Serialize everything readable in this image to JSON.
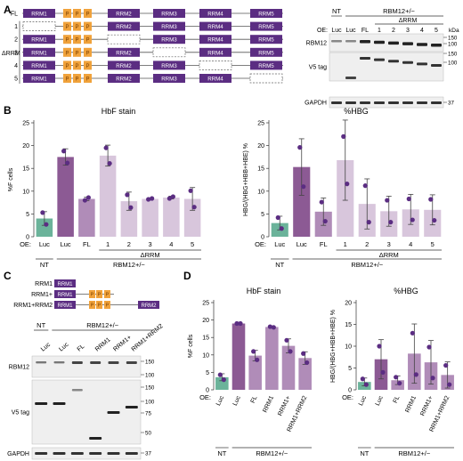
{
  "panels": {
    "A": "A",
    "B": "B",
    "C": "C",
    "D": "D"
  },
  "colors": {
    "teal": "#6bb39a",
    "dark_purple": "#8c5a94",
    "mid_purple": "#b08cb8",
    "light_purple": "#d8c6dc",
    "rrm": "#5b2d82",
    "ptb": "#f0a23b",
    "dot": "#5b2d82"
  },
  "panelA": {
    "fl_label": "FL",
    "drrm_label": "ΔRRM",
    "construct_rows": [
      {
        "label": "FL",
        "missing": null
      },
      {
        "label": "1",
        "missing": 1
      },
      {
        "label": "2",
        "missing": 2
      },
      {
        "label": "3",
        "missing": 3
      },
      {
        "label": "4",
        "missing": 4
      },
      {
        "label": "5",
        "missing": 5
      }
    ],
    "rrm_names": [
      "RRM1",
      "RRM2",
      "RRM3",
      "RRM4",
      "RRM5"
    ],
    "ptb_label": "P",
    "blot": {
      "nt": "NT",
      "genotype": "RBM12+/−",
      "oe": "OE:",
      "drrm": "ΔRRM",
      "lanes": [
        "Luc",
        "Luc",
        "FL",
        "1",
        "2",
        "3",
        "4",
        "5"
      ],
      "kda": "kDa",
      "rows": [
        {
          "name": "RBM12",
          "markers": [
            "150",
            "100"
          ]
        },
        {
          "name": "V5 tag",
          "markers": [
            "150",
            "100"
          ]
        },
        {
          "name": "GAPDH",
          "markers": [
            "37"
          ]
        }
      ]
    }
  },
  "chart_data": [
    {
      "type": "bar",
      "title": "HbF stain",
      "ylabel": "%F cells",
      "ylim": [
        0,
        25
      ],
      "yticks": [
        0,
        5,
        10,
        15,
        20,
        25
      ],
      "categories": [
        "Luc",
        "Luc",
        "FL",
        "1",
        "2",
        "3",
        "4",
        "5"
      ],
      "values": [
        4.0,
        17.5,
        8.3,
        17.8,
        7.8,
        8.3,
        8.6,
        8.3
      ],
      "errors": [
        1.5,
        1.8,
        0.4,
        2.3,
        2.0,
        0.2,
        0.3,
        2.5
      ],
      "points": [
        [
          5.3,
          2.7
        ],
        [
          18.8,
          16.2
        ],
        [
          8.0,
          8.6
        ],
        [
          19.5,
          16.1
        ],
        [
          9.2,
          6.4
        ],
        [
          8.2,
          8.4
        ],
        [
          8.4,
          8.8
        ],
        [
          10.1,
          6.5
        ]
      ],
      "group_labels": {
        "oe": "OE:",
        "drrm": "ΔRRM",
        "nt": "NT",
        "genotype": "RBM12+/−"
      }
    },
    {
      "type": "bar",
      "title": "%HBG",
      "ylabel": "HBG/(HBG+HBB+HBE) %",
      "ylim": [
        0,
        25
      ],
      "yticks": [
        0,
        5,
        10,
        15,
        20,
        25
      ],
      "categories": [
        "Luc",
        "Luc",
        "FL",
        "1",
        "2",
        "3",
        "4",
        "5"
      ],
      "values": [
        3.0,
        15.3,
        5.5,
        16.8,
        7.2,
        5.6,
        6.0,
        5.9
      ],
      "errors": [
        1.5,
        6.2,
        3.0,
        8.8,
        5.5,
        3.3,
        3.3,
        3.3
      ],
      "points": [
        [
          4.2,
          1.8
        ],
        [
          19.6,
          11.0
        ],
        [
          7.6,
          3.4
        ],
        [
          22.0,
          11.6
        ],
        [
          11.2,
          3.2
        ],
        [
          8.0,
          3.2
        ],
        [
          8.3,
          3.7
        ],
        [
          8.2,
          3.6
        ]
      ],
      "group_labels": {
        "oe": "OE:",
        "drrm": "ΔRRM",
        "nt": "NT",
        "genotype": "RBM12+/−"
      }
    },
    {
      "type": "bar",
      "title": "HbF stain",
      "ylabel": "%F cells",
      "ylim": [
        0,
        25
      ],
      "yticks": [
        0,
        5,
        10,
        15,
        20,
        25
      ],
      "categories": [
        "Luc",
        "Luc",
        "FL",
        "RRM1",
        "RRM1+",
        "RRM1+RRM2"
      ],
      "values": [
        3.6,
        19.0,
        9.8,
        18.0,
        12.6,
        9.1
      ],
      "errors": [
        1.0,
        0.1,
        1.5,
        0.3,
        2.0,
        1.8
      ],
      "points": [
        [
          4.3,
          2.9
        ],
        [
          19.0,
          19.0
        ],
        [
          11.0,
          8.6
        ],
        [
          18.1,
          17.9
        ],
        [
          14.2,
          11.0
        ],
        [
          10.4,
          7.8
        ]
      ],
      "group_labels": {
        "oe": "OE:",
        "nt": "NT",
        "genotype": "RBM12+/−"
      }
    },
    {
      "type": "bar",
      "title": "%HBG",
      "ylabel": "HBG/(HBG+HBB+HBE) %",
      "ylim": [
        0,
        20
      ],
      "yticks": [
        0,
        5,
        10,
        15,
        20
      ],
      "categories": [
        "Luc",
        "Luc",
        "FL",
        "RRM1",
        "RRM1+",
        "RRM1+RRM2"
      ],
      "values": [
        1.8,
        7.0,
        2.2,
        8.3,
        6.3,
        3.4
      ],
      "errors": [
        0.9,
        4.5,
        1.0,
        6.8,
        5.0,
        3.0
      ],
      "points": [
        [
          2.5,
          1.2
        ],
        [
          10.0,
          4.0
        ],
        [
          2.9,
          1.5
        ],
        [
          13.0,
          3.5
        ],
        [
          9.8,
          2.7
        ],
        [
          5.6,
          1.2
        ]
      ],
      "group_labels": {
        "oe": "OE:",
        "nt": "NT",
        "genotype": "RBM12+/−"
      }
    }
  ],
  "panelC": {
    "constructs": [
      {
        "label": "RRM1",
        "rrm_a": "RRM1"
      },
      {
        "label": "RRM1+",
        "rrm_a": "RRM1"
      },
      {
        "label": "RRM1+RRM2",
        "rrm_a": "RRM1",
        "rrm_b": "RRM2"
      }
    ],
    "blot": {
      "nt": "NT",
      "genotype": "RBM12+/−",
      "lanes": [
        "Luc",
        "Luc",
        "FL",
        "RRM1",
        "RRM1+",
        "RRM1+RRM2"
      ],
      "rows": [
        {
          "name": "RBM12",
          "markers": [
            "150",
            "100"
          ]
        },
        {
          "name": "V5 tag",
          "markers": [
            "150",
            "100",
            "75",
            "50"
          ]
        },
        {
          "name": "GAPDH",
          "markers": [
            "37"
          ]
        }
      ]
    }
  }
}
